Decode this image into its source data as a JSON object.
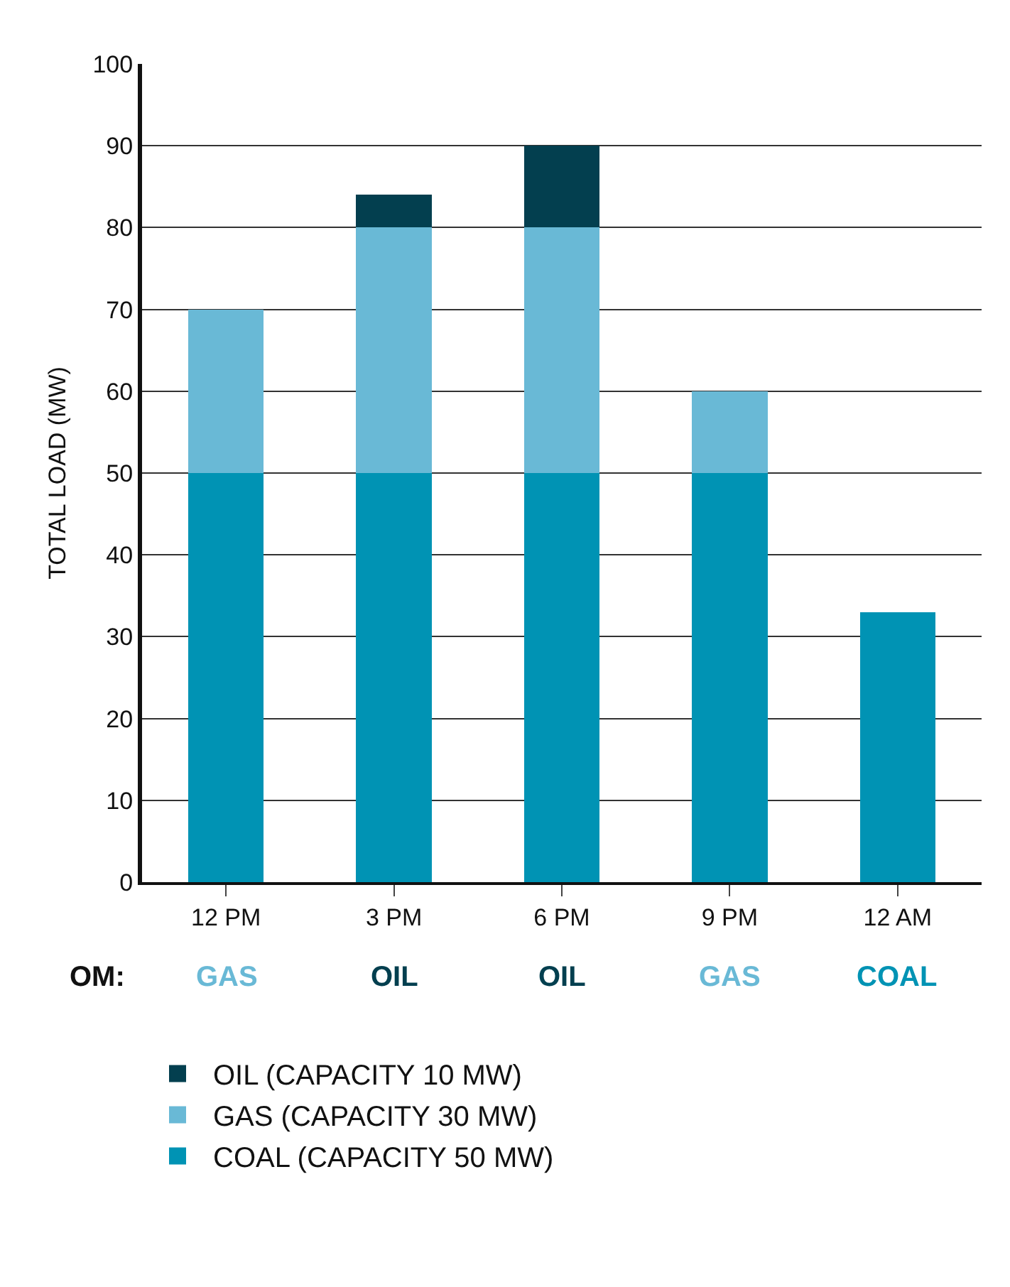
{
  "chart_data": {
    "type": "bar",
    "stacked": true,
    "ylabel": "TOTAL LOAD (MW)",
    "categories": [
      "12 PM",
      "3 PM",
      "6 PM",
      "9 PM",
      "12 AM"
    ],
    "series": [
      {
        "name": "COAL (CAPACITY 50 MW)",
        "color": "#0093b4",
        "values": [
          50,
          50,
          50,
          50,
          33
        ]
      },
      {
        "name": "GAS (CAPACITY 30 MW)",
        "color": "#69b9d6",
        "values": [
          20,
          30,
          30,
          10,
          null
        ]
      },
      {
        "name": "OIL (CAPACITY 10 MW)",
        "color": "#033f4f",
        "values": [
          null,
          4,
          10,
          null,
          null
        ]
      }
    ],
    "ylim": [
      0,
      100
    ],
    "yticks": [
      0,
      10,
      20,
      30,
      40,
      50,
      60,
      70,
      80,
      90,
      100
    ],
    "grid": "y",
    "legend": "bottom",
    "annotations": [
      "OM:",
      "GAS",
      "OIL",
      "OIL",
      "GAS",
      "COAL"
    ]
  }
}
